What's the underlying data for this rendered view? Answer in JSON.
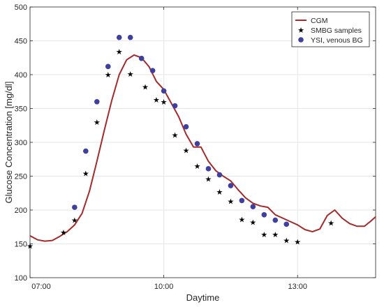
{
  "chart_data": {
    "type": "line",
    "xlabel": "Daytime",
    "ylabel": "Glucose Concentration [mg/dl]",
    "xlim": [
      "07:00",
      "14:45"
    ],
    "ylim": [
      100,
      500
    ],
    "xticks": [
      "07:00",
      "10:00",
      "13:00"
    ],
    "yticks": [
      100,
      150,
      200,
      250,
      300,
      350,
      400,
      450,
      500
    ],
    "grid": true,
    "legend_position": "top-right",
    "colors": {
      "cgm": "#a52a2a",
      "smbg": "#000000",
      "ysi": "#3f3fa0",
      "grid": "#e6e6e6",
      "axis": "#262626"
    },
    "series": [
      {
        "name": "CGM",
        "type": "line",
        "x": [
          "07:00",
          "07:10",
          "07:20",
          "07:30",
          "07:40",
          "07:50",
          "08:00",
          "08:10",
          "08:20",
          "08:30",
          "08:40",
          "08:50",
          "09:00",
          "09:10",
          "09:20",
          "09:30",
          "09:40",
          "09:50",
          "10:00",
          "10:10",
          "10:20",
          "10:30",
          "10:40",
          "10:50",
          "11:00",
          "11:10",
          "11:20",
          "11:30",
          "11:40",
          "11:50",
          "12:00",
          "12:10",
          "12:20",
          "12:30",
          "12:40",
          "12:50",
          "13:00",
          "13:10",
          "13:20",
          "13:30",
          "13:40",
          "13:50",
          "14:00",
          "14:10",
          "14:20",
          "14:30",
          "14:40",
          "14:45"
        ],
        "values": [
          162,
          156,
          154,
          155,
          161,
          168,
          178,
          195,
          228,
          272,
          318,
          362,
          400,
          422,
          429,
          425,
          412,
          390,
          378,
          358,
          338,
          312,
          293,
          293,
          272,
          258,
          250,
          243,
          230,
          218,
          210,
          206,
          204,
          193,
          188,
          183,
          178,
          171,
          168,
          172,
          192,
          200,
          188,
          180,
          176,
          176,
          185,
          190
        ]
      },
      {
        "name": "SMBG samples",
        "type": "scatter",
        "marker": "star",
        "x": [
          "07:00",
          "07:45",
          "08:00",
          "08:15",
          "08:30",
          "08:45",
          "09:00",
          "09:15",
          "09:35",
          "09:50",
          "10:00",
          "10:15",
          "10:30",
          "10:45",
          "11:00",
          "11:15",
          "11:30",
          "11:45",
          "12:00",
          "12:15",
          "12:30",
          "12:45",
          "13:00",
          "13:45"
        ],
        "values": [
          147,
          167,
          185,
          254,
          330,
          400,
          434,
          401,
          382,
          363,
          360,
          311,
          288,
          265,
          246,
          227,
          213,
          186,
          182,
          164,
          164,
          155,
          153,
          181
        ]
      },
      {
        "name": "YSI, venous BG",
        "type": "scatter",
        "marker": "circle",
        "x": [
          "08:00",
          "08:15",
          "08:30",
          "08:45",
          "09:00",
          "09:15",
          "09:30",
          "09:45",
          "10:00",
          "10:15",
          "10:30",
          "10:45",
          "11:00",
          "11:15",
          "11:30",
          "11:45",
          "12:00",
          "12:15",
          "12:30",
          "12:45"
        ],
        "values": [
          204,
          287,
          360,
          412,
          455,
          455,
          424,
          406,
          376,
          354,
          323,
          298,
          261,
          252,
          236,
          214,
          205,
          193,
          185,
          179
        ]
      }
    ]
  }
}
